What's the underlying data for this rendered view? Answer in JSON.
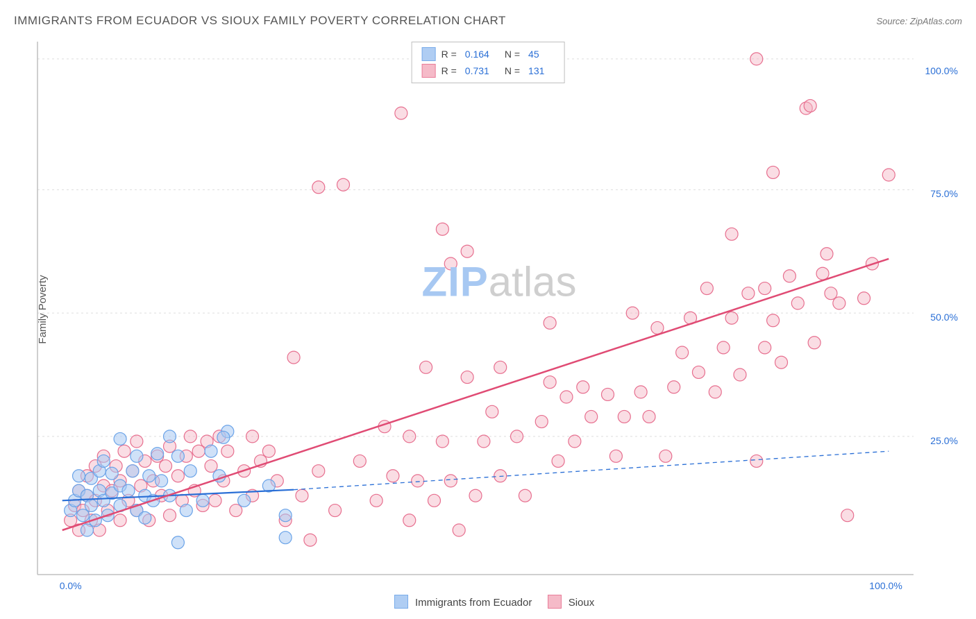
{
  "title": "IMMIGRANTS FROM ECUADOR VS SIOUX FAMILY POVERTY CORRELATION CHART",
  "source_label": "Source: ZipAtlas.com",
  "y_axis_label": "Family Poverty",
  "watermark": {
    "part1": "ZIP",
    "part2": "atlas"
  },
  "chart": {
    "type": "scatter",
    "background_color": "#ffffff",
    "grid_color": "#dddddd",
    "axis_color": "#bfbfbf",
    "axis_left": true,
    "axis_bottom": true,
    "xlim": [
      -3,
      103
    ],
    "ylim": [
      -3,
      105
    ],
    "x_ticks": [
      {
        "value": 0,
        "label": "0.0%"
      },
      {
        "value": 100,
        "label": "100.0%"
      }
    ],
    "y_ticks": [
      {
        "value": 25,
        "label": "25.0%"
      },
      {
        "value": 50,
        "label": "50.0%"
      },
      {
        "value": 75,
        "label": "75.0%"
      },
      {
        "value": 100,
        "label": "100.0%"
      }
    ],
    "y_grid_at": [
      25,
      50,
      75,
      101.5
    ],
    "marker_radius": 9,
    "marker_stroke_width": 1.2,
    "tick_label_color": "#2a6fd6",
    "tick_label_fontsize": 14
  },
  "series": [
    {
      "key": "ecuador",
      "legend_label": "Immigrants from Ecuador",
      "R": "0.164",
      "N": "45",
      "color_fill": "#a7c8f2",
      "color_stroke": "#6aa3e8",
      "color_fill_opacity": 0.55,
      "trend": {
        "style": "solid-then-dashed",
        "color": "#2a6fd6",
        "width": 2.2,
        "dash": "6 5",
        "x1": 0,
        "y1": 12.0,
        "xm": 28,
        "ym": 14.2,
        "x2": 100,
        "y2": 22.0
      },
      "points": [
        [
          1,
          10
        ],
        [
          1.5,
          12
        ],
        [
          2,
          14
        ],
        [
          2,
          17
        ],
        [
          2.5,
          9
        ],
        [
          3,
          6
        ],
        [
          3,
          13
        ],
        [
          3.5,
          11
        ],
        [
          3.5,
          16.5
        ],
        [
          4,
          8
        ],
        [
          4.5,
          14
        ],
        [
          4.5,
          18
        ],
        [
          5,
          12
        ],
        [
          5,
          20
        ],
        [
          5.5,
          9
        ],
        [
          6,
          13.5
        ],
        [
          6,
          17.5
        ],
        [
          7,
          11
        ],
        [
          7,
          15
        ],
        [
          7,
          24.5
        ],
        [
          8,
          14
        ],
        [
          8.5,
          18
        ],
        [
          9,
          10
        ],
        [
          9,
          21
        ],
        [
          10,
          8.5
        ],
        [
          10,
          13
        ],
        [
          10.5,
          17
        ],
        [
          11,
          12
        ],
        [
          11.5,
          21.5
        ],
        [
          12,
          16
        ],
        [
          13,
          13
        ],
        [
          13,
          25
        ],
        [
          14,
          3.5
        ],
        [
          14,
          21
        ],
        [
          15,
          10
        ],
        [
          15.5,
          18
        ],
        [
          17,
          12
        ],
        [
          18,
          22
        ],
        [
          19,
          17
        ],
        [
          20,
          26
        ],
        [
          19.5,
          24.8
        ],
        [
          22,
          12
        ],
        [
          25,
          15
        ],
        [
          27,
          9
        ],
        [
          27,
          4.5
        ]
      ]
    },
    {
      "key": "sioux",
      "legend_label": "Sioux",
      "R": "0.731",
      "N": "131",
      "color_fill": "#f5b3c3",
      "color_stroke": "#e76f8f",
      "color_fill_opacity": 0.45,
      "trend": {
        "style": "solid",
        "color": "#e04b74",
        "width": 2.5,
        "x1": 0,
        "y1": 6.0,
        "x2": 100,
        "y2": 61.0
      },
      "points": [
        [
          1,
          8
        ],
        [
          1.5,
          11
        ],
        [
          2,
          6
        ],
        [
          2,
          14
        ],
        [
          2.5,
          10
        ],
        [
          3,
          13
        ],
        [
          3,
          17
        ],
        [
          3.5,
          8
        ],
        [
          4,
          12
        ],
        [
          4,
          19
        ],
        [
          4.5,
          6
        ],
        [
          5,
          15
        ],
        [
          5,
          21
        ],
        [
          5.5,
          10
        ],
        [
          6,
          14
        ],
        [
          6.5,
          19
        ],
        [
          7,
          8
        ],
        [
          7,
          16
        ],
        [
          7.5,
          22
        ],
        [
          8,
          12
        ],
        [
          8.5,
          18
        ],
        [
          9,
          10
        ],
        [
          9,
          24
        ],
        [
          9.5,
          15
        ],
        [
          10,
          20
        ],
        [
          10.5,
          8
        ],
        [
          11,
          16
        ],
        [
          11.5,
          21
        ],
        [
          12,
          13
        ],
        [
          12.5,
          19
        ],
        [
          13,
          9
        ],
        [
          13,
          23
        ],
        [
          14,
          17
        ],
        [
          14.5,
          12
        ],
        [
          15,
          21
        ],
        [
          15.5,
          25
        ],
        [
          16,
          14
        ],
        [
          16.5,
          22
        ],
        [
          17,
          11
        ],
        [
          17.5,
          24
        ],
        [
          18,
          19
        ],
        [
          18.5,
          12
        ],
        [
          19,
          25
        ],
        [
          19.5,
          16
        ],
        [
          20,
          22
        ],
        [
          21,
          10
        ],
        [
          22,
          18
        ],
        [
          23,
          25
        ],
        [
          23,
          13
        ],
        [
          24,
          20
        ],
        [
          25,
          22
        ],
        [
          26,
          16
        ],
        [
          27,
          8
        ],
        [
          28,
          41
        ],
        [
          29,
          13
        ],
        [
          30,
          4
        ],
        [
          31,
          75.5
        ],
        [
          31,
          18
        ],
        [
          33,
          10
        ],
        [
          34,
          76
        ],
        [
          36,
          20
        ],
        [
          38,
          12
        ],
        [
          39,
          27
        ],
        [
          40,
          17
        ],
        [
          41,
          90.5
        ],
        [
          42,
          8
        ],
        [
          42,
          25
        ],
        [
          43,
          16
        ],
        [
          44,
          39
        ],
        [
          45,
          12
        ],
        [
          46,
          24
        ],
        [
          46,
          67
        ],
        [
          47,
          16
        ],
        [
          47,
          60
        ],
        [
          48,
          6
        ],
        [
          49,
          37
        ],
        [
          49,
          62.5
        ],
        [
          50,
          13
        ],
        [
          51,
          24
        ],
        [
          52,
          30
        ],
        [
          53,
          17
        ],
        [
          53,
          39
        ],
        [
          55,
          25
        ],
        [
          56,
          13
        ],
        [
          58,
          28
        ],
        [
          59,
          36
        ],
        [
          59,
          48
        ],
        [
          60,
          20
        ],
        [
          61,
          33
        ],
        [
          62,
          24
        ],
        [
          63,
          35
        ],
        [
          64,
          29
        ],
        [
          66,
          33.5
        ],
        [
          67,
          21
        ],
        [
          68,
          29
        ],
        [
          69,
          50
        ],
        [
          70,
          34
        ],
        [
          71,
          29
        ],
        [
          72,
          47
        ],
        [
          73,
          21
        ],
        [
          74,
          35
        ],
        [
          75,
          42
        ],
        [
          76,
          49
        ],
        [
          77,
          38
        ],
        [
          78,
          55
        ],
        [
          79,
          34
        ],
        [
          80,
          43
        ],
        [
          81,
          49
        ],
        [
          81,
          66
        ],
        [
          82,
          37.5
        ],
        [
          83,
          54
        ],
        [
          84,
          20
        ],
        [
          84,
          101.5
        ],
        [
          85,
          43
        ],
        [
          85,
          55
        ],
        [
          86,
          48.5
        ],
        [
          86,
          78.5
        ],
        [
          87,
          40
        ],
        [
          88,
          57.5
        ],
        [
          89,
          52
        ],
        [
          90,
          91.5
        ],
        [
          90.5,
          92
        ],
        [
          91,
          44
        ],
        [
          92,
          58
        ],
        [
          92.5,
          62
        ],
        [
          93,
          54
        ],
        [
          94,
          52
        ],
        [
          97,
          53
        ],
        [
          98,
          60
        ],
        [
          100,
          78
        ],
        [
          95,
          9
        ]
      ]
    }
  ],
  "legend_top_labels": {
    "R": "R =",
    "N": "N ="
  },
  "legend_bottom_order": [
    "ecuador",
    "sioux"
  ]
}
